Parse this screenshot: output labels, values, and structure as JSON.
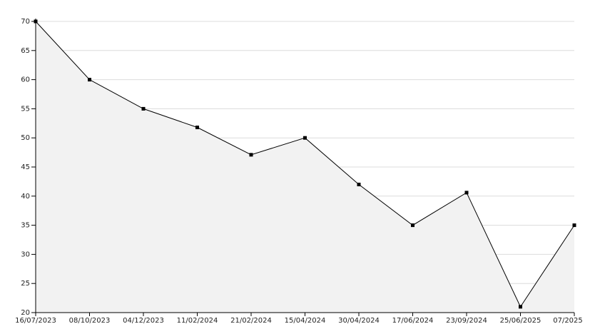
{
  "chart_data": {
    "type": "area",
    "categories": [
      "16/07/2023",
      "08/10/2023",
      "04/12/2023",
      "11/02/2024",
      "21/02/2024",
      "15/04/2024",
      "30/04/2024",
      "17/06/2024",
      "23/09/2024",
      "25/06/2025",
      "07/2025"
    ],
    "values": [
      70,
      60,
      55,
      51.8,
      47.1,
      50,
      42,
      35,
      40.6,
      21,
      35
    ],
    "color": "#000000",
    "fill": "#f2f2f2",
    "ylim": [
      20,
      70
    ],
    "yticks": [
      20,
      25,
      30,
      35,
      40,
      45,
      50,
      55,
      60,
      65,
      70
    ],
    "grid": true
  }
}
